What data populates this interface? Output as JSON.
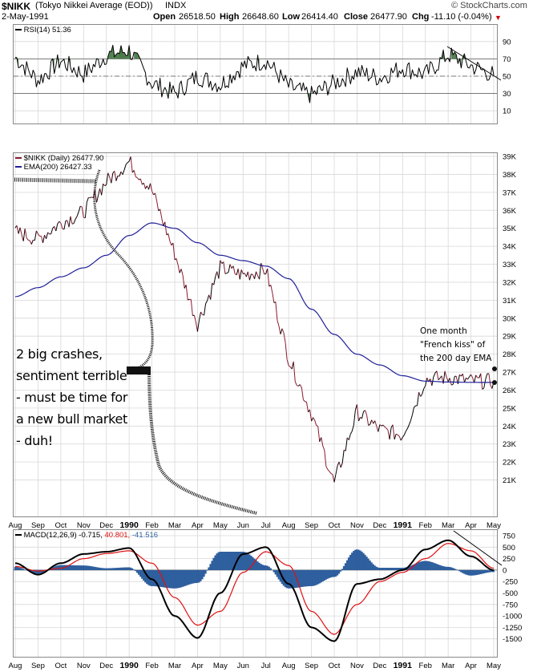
{
  "header": {
    "symbol": "$NIKK",
    "name": "(Tokyo Nikkei Average (EOD))",
    "exchange": "INDX",
    "copyright": "© StockCharts.com",
    "date": "2-May-1991",
    "open_label": "Open",
    "open": "26518.50",
    "high_label": "High",
    "high": "26648.60",
    "low_label": "Low",
    "low": "26414.40",
    "close_label": "Close",
    "close": "26477.90",
    "chg_label": "Chg",
    "chg": "-11.10 (-0.04%)",
    "accent_red": "#cc0000"
  },
  "legends": {
    "rsi": "RSI(14) 51.36",
    "price": "$NIKK (Daily) 26477.90",
    "ema": "EMA(200) 26427.33",
    "macd_prefix": "MACD(12,26,9) -0.715,",
    "macd_signal": "40.801,",
    "macd_hist": "-41.516"
  },
  "annotations": {
    "big": "2 big crashes, sentiment terrible - must be time for a new bull market - duh!",
    "small": "One month \"French kiss\" of the 200 day EMA"
  },
  "colors": {
    "price": "#8b1a2e",
    "price_up": "#000000",
    "ema": "#1f1f99",
    "rsi": "#000000",
    "rsi_zone": "#4a7a4a",
    "macd": "#000000",
    "signal": "#e01010",
    "hist": "#2e5f9e",
    "grid": "#d8d8d8",
    "marker": "#111111"
  },
  "chart_data": [
    {
      "type": "line",
      "title": "RSI(14)",
      "ylim": [
        0,
        100
      ],
      "y_ticks": [
        "90",
        "70",
        "50",
        "30",
        "10"
      ],
      "levels": [
        70,
        50,
        30
      ],
      "x": [
        "1989-08",
        "1989-09",
        "1989-10",
        "1989-11",
        "1989-12",
        "1990-01",
        "1990-02",
        "1990-03",
        "1990-04",
        "1990-05",
        "1990-06",
        "1990-07",
        "1990-08",
        "1990-09",
        "1990-10",
        "1990-11",
        "1990-12",
        "1991-01",
        "1991-02",
        "1991-03",
        "1991-04",
        "1991-05"
      ],
      "series": [
        {
          "name": "RSI(14)",
          "values": [
            72,
            45,
            68,
            52,
            74,
            80,
            42,
            30,
            50,
            40,
            62,
            68,
            38,
            28,
            42,
            55,
            48,
            60,
            52,
            75,
            62,
            51.36
          ]
        }
      ]
    },
    {
      "type": "line",
      "title": "$NIKK (Daily)",
      "ylim": [
        20000,
        39000
      ],
      "y_ticks": [
        "39K",
        "38K",
        "37K",
        "36K",
        "35K",
        "34K",
        "33K",
        "32K",
        "31K",
        "30K",
        "29K",
        "28K",
        "27K",
        "26K",
        "25K",
        "24K",
        "23K",
        "22K",
        "21K"
      ],
      "x": [
        "1989-08",
        "1989-09",
        "1989-10",
        "1989-11",
        "1989-12",
        "1990-01",
        "1990-02",
        "1990-03",
        "1990-04",
        "1990-05",
        "1990-06",
        "1990-07",
        "1990-08",
        "1990-09",
        "1990-10",
        "1990-11",
        "1990-12",
        "1991-01",
        "1991-02",
        "1991-03",
        "1991-04",
        "1991-05"
      ],
      "series": [
        {
          "name": "$NIKK (Daily)",
          "values": [
            34800,
            34400,
            35300,
            35900,
            37600,
            38700,
            37100,
            33600,
            29700,
            32800,
            32400,
            32700,
            27800,
            24700,
            20800,
            24800,
            23800,
            23500,
            26600,
            26700,
            26500,
            26477.9
          ]
        },
        {
          "name": "EMA(200)",
          "values": [
            31200,
            31700,
            32300,
            32800,
            33500,
            34600,
            35300,
            35000,
            34200,
            33500,
            33200,
            32900,
            32200,
            30500,
            29100,
            28000,
            27400,
            26800,
            26500,
            26450,
            26430,
            26427.33
          ]
        }
      ]
    },
    {
      "type": "line",
      "title": "MACD(12,26,9)",
      "ylim": [
        -1750,
        750
      ],
      "y_ticks": [
        "750",
        "500",
        "250",
        "0",
        "-250",
        "-500",
        "-750",
        "-1000",
        "-1250",
        "-1500"
      ],
      "x": [
        "1989-08",
        "1989-09",
        "1989-10",
        "1989-11",
        "1989-12",
        "1990-01",
        "1990-02",
        "1990-03",
        "1990-04",
        "1990-05",
        "1990-06",
        "1990-07",
        "1990-08",
        "1990-09",
        "1990-10",
        "1990-11",
        "1990-12",
        "1991-01",
        "1991-02",
        "1991-03",
        "1991-04",
        "1991-05"
      ],
      "series": [
        {
          "name": "MACD",
          "values": [
            150,
            -100,
            150,
            350,
            400,
            480,
            -200,
            -1000,
            -1480,
            -500,
            350,
            500,
            -300,
            -1250,
            -1550,
            -300,
            -200,
            0,
            450,
            650,
            300,
            -0.715
          ]
        },
        {
          "name": "Signal",
          "values": [
            80,
            -20,
            40,
            250,
            360,
            420,
            150,
            -600,
            -1200,
            -900,
            -50,
            400,
            100,
            -900,
            -1400,
            -750,
            -250,
            -50,
            250,
            580,
            420,
            40.801
          ]
        },
        {
          "name": "Histogram",
          "values": [
            70,
            -80,
            110,
            100,
            40,
            60,
            -350,
            -400,
            -280,
            400,
            400,
            100,
            -400,
            -350,
            -150,
            450,
            50,
            50,
            200,
            70,
            -120,
            -41.516
          ]
        }
      ]
    }
  ],
  "x_axis_labels": [
    "Aug",
    "Sep",
    "Oct",
    "Nov",
    "Dec",
    "1990",
    "Feb",
    "Mar",
    "Apr",
    "May",
    "Jun",
    "Jul",
    "Aug",
    "Sep",
    "Oct",
    "Nov",
    "Dec",
    "1991",
    "Feb",
    "Mar",
    "Apr",
    "May"
  ]
}
